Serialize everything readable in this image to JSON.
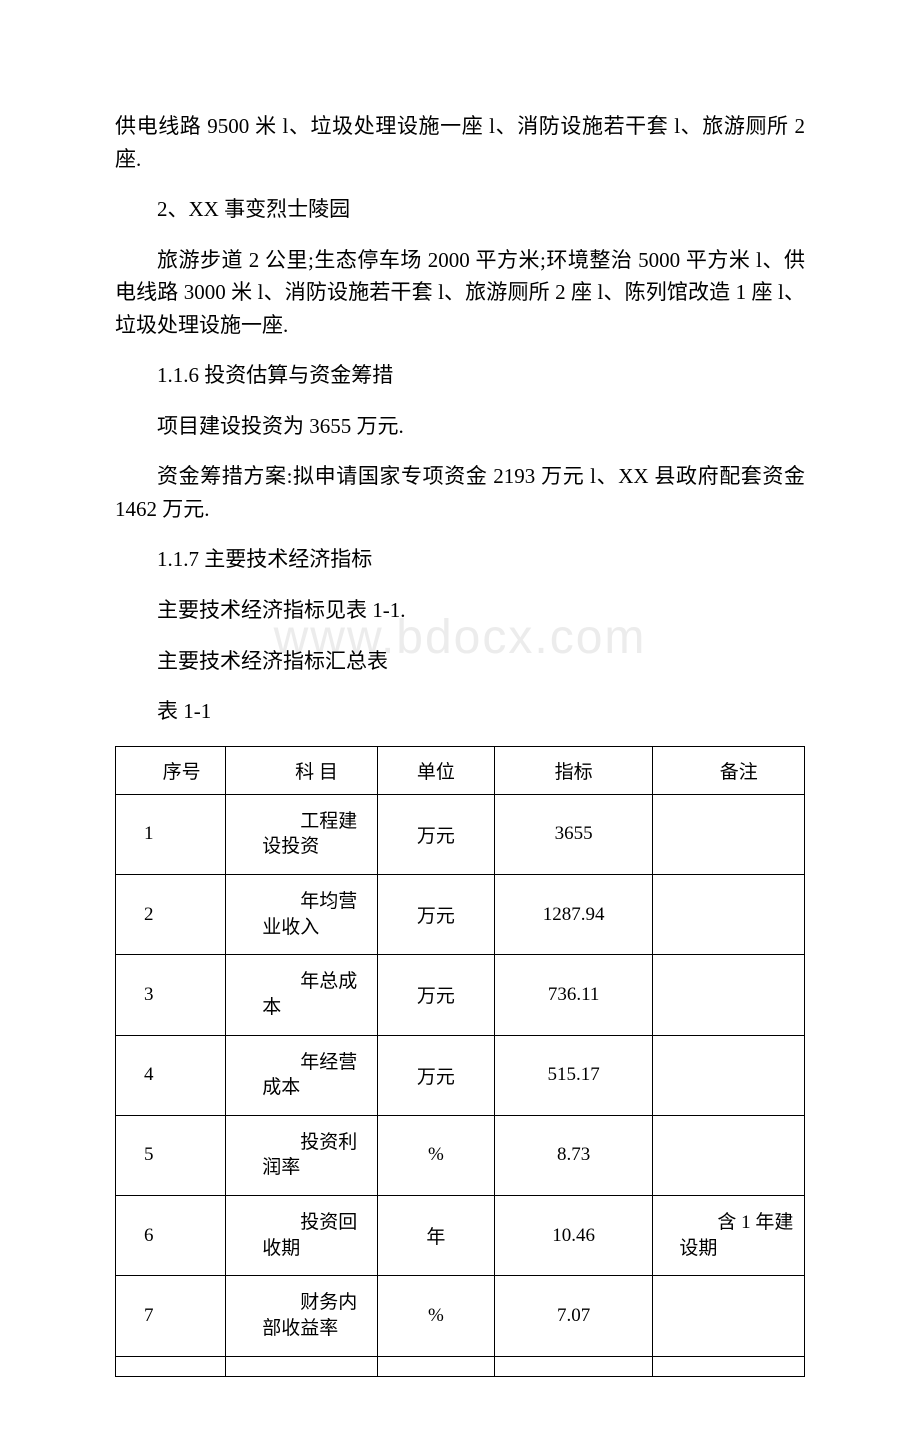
{
  "watermark": "www.bdocx.com",
  "paragraphs": {
    "p1": "供电线路 9500 米 l、垃圾处理设施一座 l、消防设施若干套 l、旅游厕所 2 座.",
    "p2": "2、XX 事变烈士陵园",
    "p3": "旅游步道 2 公里;生态停车场 2000 平方米;环境整治 5000 平方米 l、供电线路 3000 米 l、消防设施若干套 l、旅游厕所 2 座 l、陈列馆改造 1 座 l、垃圾处理设施一座.",
    "p4": "1.1.6 投资估算与资金筹措",
    "p5": "项目建设投资为 3655 万元.",
    "p6": "资金筹措方案:拟申请国家专项资金 2193 万元 l、XX 县政府配套资金 1462 万元.",
    "p7": "1.1.7 主要技术经济指标",
    "p8": "主要技术经济指标见表 1-1.",
    "p9": "主要技术经济指标汇总表",
    "p10": "表 1-1"
  },
  "table": {
    "type": "table",
    "border_color": "#000000",
    "background_color": "#ffffff",
    "font_size": 19,
    "columns": [
      {
        "key": "seq",
        "label": "序号",
        "width_pct": 16,
        "align": "left"
      },
      {
        "key": "subject",
        "label": "科 目",
        "width_pct": 22,
        "align": "left"
      },
      {
        "key": "unit",
        "label": "单位",
        "width_pct": 17,
        "align": "center"
      },
      {
        "key": "value",
        "label": "指标",
        "width_pct": 23,
        "align": "center"
      },
      {
        "key": "remark",
        "label": "备注",
        "width_pct": 22,
        "align": "left"
      }
    ],
    "rows": [
      {
        "seq": "1",
        "subject": "工程建设投资",
        "unit": "万元",
        "value": "3655",
        "remark": ""
      },
      {
        "seq": "2",
        "subject": "年均营业收入",
        "unit": "万元",
        "value": "1287.94",
        "remark": ""
      },
      {
        "seq": "3",
        "subject": "年总成本",
        "unit": "万元",
        "value": "736.11",
        "remark": ""
      },
      {
        "seq": "4",
        "subject": "年经营成本",
        "unit": "万元",
        "value": "515.17",
        "remark": ""
      },
      {
        "seq": "5",
        "subject": "投资利润率",
        "unit": "%",
        "value": "8.73",
        "remark": ""
      },
      {
        "seq": "6",
        "subject": "投资回收期",
        "unit": "年",
        "value": "10.46",
        "remark": "含 1 年建设期"
      },
      {
        "seq": "7",
        "subject": "财务内部收益率",
        "unit": "%",
        "value": "7.07",
        "remark": ""
      }
    ]
  }
}
